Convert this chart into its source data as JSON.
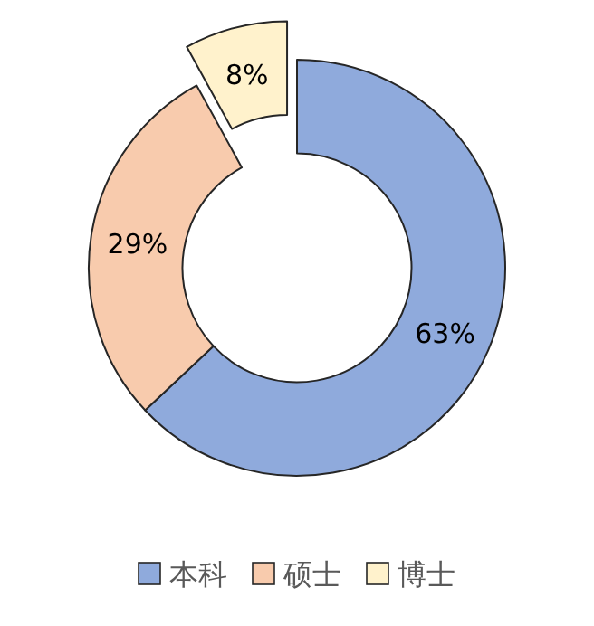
{
  "chart_data": {
    "type": "donut",
    "categories": [
      "本科",
      "硕士",
      "博士"
    ],
    "values": [
      63,
      29,
      8
    ],
    "colors": [
      "#8faadc",
      "#f8cbad",
      "#fff2cc"
    ],
    "value_labels": [
      "63%",
      "29%",
      "8%"
    ],
    "legend": "bottom"
  }
}
